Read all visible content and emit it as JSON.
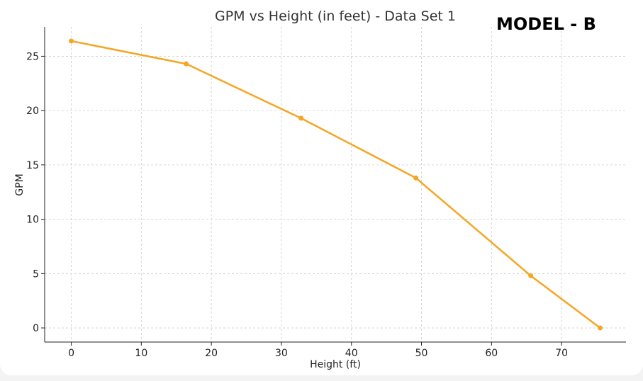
{
  "overlay": {
    "model_label": "MODEL - B"
  },
  "colors": {
    "line": "#f5a623",
    "grid": "#cccccc",
    "axis": "#222222"
  },
  "chart_data": {
    "type": "line",
    "title": "GPM vs Height (in feet) - Data Set 1",
    "xlabel": "Height (ft)",
    "ylabel": "GPM",
    "xlim": [
      -3.8,
      79.2
    ],
    "ylim": [
      -1.3,
      27.7
    ],
    "xticks": [
      0,
      10,
      20,
      30,
      40,
      50,
      60,
      70
    ],
    "yticks": [
      0,
      5,
      10,
      15,
      20,
      25
    ],
    "grid": true,
    "series": [
      {
        "x": [
          0,
          16.4,
          32.8,
          49.2,
          65.6,
          75.5
        ],
        "y": [
          26.4,
          24.3,
          19.3,
          13.8,
          4.8,
          0.0
        ]
      }
    ]
  }
}
